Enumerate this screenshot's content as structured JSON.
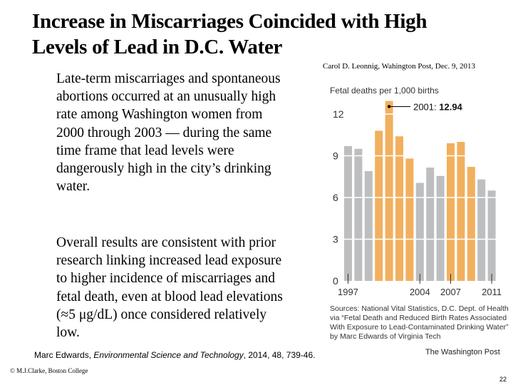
{
  "slide": {
    "title_line1": "Increase in Miscarriages Coincided with High",
    "title_line2": "Levels of Lead in D.C. Water",
    "byline": "Carol D. Leonnig, Wahington Post, Dec. 9, 2013",
    "paragraph1": "Late-term miscarriages and spontaneous abortions occurred at an unusually high rate among Washington women from 2000 through 2003 — during the same time frame that lead levels were dangerously high in the city’s drinking water.",
    "paragraph2": "Overall results are consistent with prior research linking increased lead exposure to higher incidence of miscarriages and fetal death, even at blood lead elevations (≈5 μg/dL) once considered relatively low.",
    "citation_author": "Marc Edwards, ",
    "citation_journal": "Environmental Science and Technology",
    "citation_rest": ", 2014, 48, 739-46.",
    "copyright": "© M.J.Clarke, Boston College",
    "page_number": "22"
  },
  "chart_data": {
    "type": "bar",
    "title": "Fetal deaths per 1,000 births",
    "xlabel": "",
    "ylabel": "Fetal deaths per 1,000 births",
    "ylim": [
      0,
      13
    ],
    "yticks": [
      "0",
      "3",
      "6",
      "9",
      "12"
    ],
    "ytick_values": [
      0,
      3,
      6,
      9,
      12
    ],
    "xtick_labels": [
      "1997",
      "2004",
      "2007",
      "2011"
    ],
    "grid": true,
    "categories": [
      "1997",
      "1998",
      "1999",
      "2000",
      "2001",
      "2002",
      "2003",
      "2004",
      "2005",
      "2006",
      "2007",
      "2008",
      "2009",
      "2010",
      "2011"
    ],
    "values": [
      9.7,
      9.5,
      7.9,
      10.8,
      12.94,
      10.4,
      8.8,
      7.05,
      8.15,
      7.55,
      9.9,
      10.0,
      8.2,
      7.3,
      6.5
    ],
    "highlighted": [
      false,
      false,
      false,
      true,
      true,
      true,
      true,
      false,
      false,
      false,
      true,
      true,
      true,
      false,
      false
    ],
    "colors": {
      "normal": "#bdbec0",
      "highlight": "#f2b05e",
      "gridline": "#ffffff"
    },
    "annotation": {
      "year_label": "2001: ",
      "value_label": "12.94",
      "category": "2001"
    },
    "sources": "Sources: National Vital Statistics, D.C. Dept. of Health via “Fetal Death and Reduced Birth Rates Associated With Exposure to Lead-Contaminated Drinking Water” by Marc Edwards of Virginia Tech",
    "credit": "The Washington Post"
  }
}
